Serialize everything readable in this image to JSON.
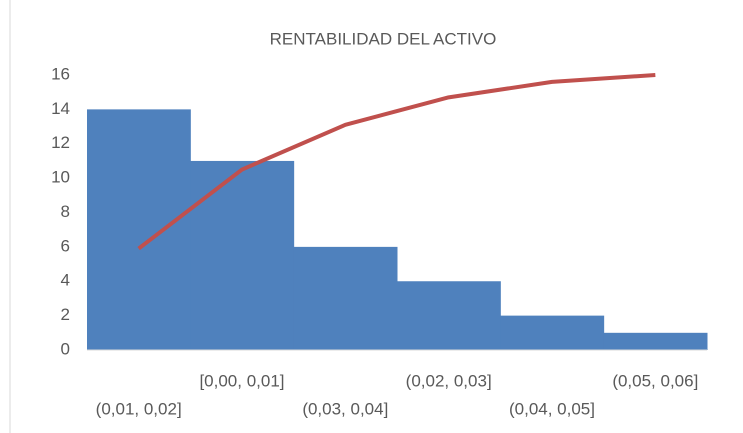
{
  "chart_data": {
    "type": "bar",
    "title": "RENTABILIDAD DEL ACTIVO",
    "categories": [
      "(0,01, 0,02]",
      "[0,00, 0,01]",
      "(0,03, 0,04]",
      "(0,02, 0,03]",
      "(0,04, 0,05]",
      "(0,05, 0,06]"
    ],
    "series": [
      {
        "type": "bar",
        "color": "#4f81bd",
        "values": [
          14,
          11,
          6,
          4,
          2,
          1
        ]
      },
      {
        "type": "line",
        "color": "#c0504d",
        "values": [
          5.9,
          10.5,
          13.1,
          14.7,
          15.6,
          16
        ]
      }
    ],
    "ylim": [
      0,
      16
    ],
    "yticks": [
      0,
      2,
      4,
      6,
      8,
      10,
      12,
      14,
      16
    ],
    "grid": false
  }
}
